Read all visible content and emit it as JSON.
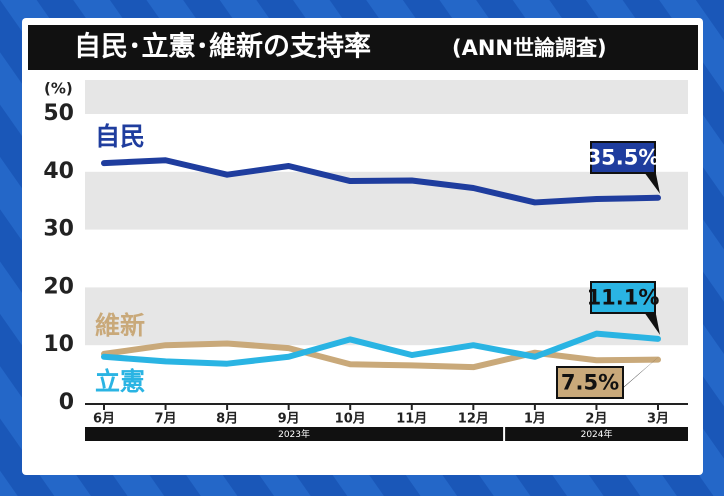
{
  "chart_data": {
    "type": "line",
    "title": "自民･立憲･維新の支持率",
    "subtitle": "(ANN世論調査)",
    "ylabel": "(%)",
    "categories": [
      "6月",
      "7月",
      "8月",
      "9月",
      "10月",
      "11月",
      "12月",
      "1月",
      "2月",
      "3月"
    ],
    "year_groups": [
      {
        "label": "2023年",
        "count": 7
      },
      {
        "label": "2024年",
        "count": 3
      }
    ],
    "ylim": [
      0,
      50
    ],
    "yticks": [
      0,
      10,
      20,
      30,
      40,
      50
    ],
    "grid": "bands",
    "series": [
      {
        "name": "自民",
        "color": "#1f3d9e",
        "values": [
          41.5,
          42,
          39.5,
          41,
          38.4,
          38.5,
          37.2,
          34.7,
          35.3,
          35.5
        ],
        "value_labels": [
          null,
          null,
          null,
          null,
          null,
          null,
          null,
          null,
          null,
          "35.5%"
        ]
      },
      {
        "name": "維新",
        "color": "#c9a97a",
        "values": [
          8.5,
          10,
          10.3,
          9.5,
          6.7,
          6.5,
          6.2,
          8.7,
          7.4,
          7.5
        ],
        "value_labels": [
          null,
          null,
          null,
          null,
          null,
          null,
          null,
          null,
          null,
          "7.5%"
        ]
      },
      {
        "name": "立憲",
        "color": "#2ab4e3",
        "values": [
          8,
          7.2,
          6.8,
          8,
          11,
          8.3,
          10,
          8,
          12,
          11.1
        ],
        "value_labels": [
          null,
          null,
          null,
          null,
          null,
          null,
          null,
          null,
          null,
          "11.1%"
        ]
      }
    ]
  }
}
